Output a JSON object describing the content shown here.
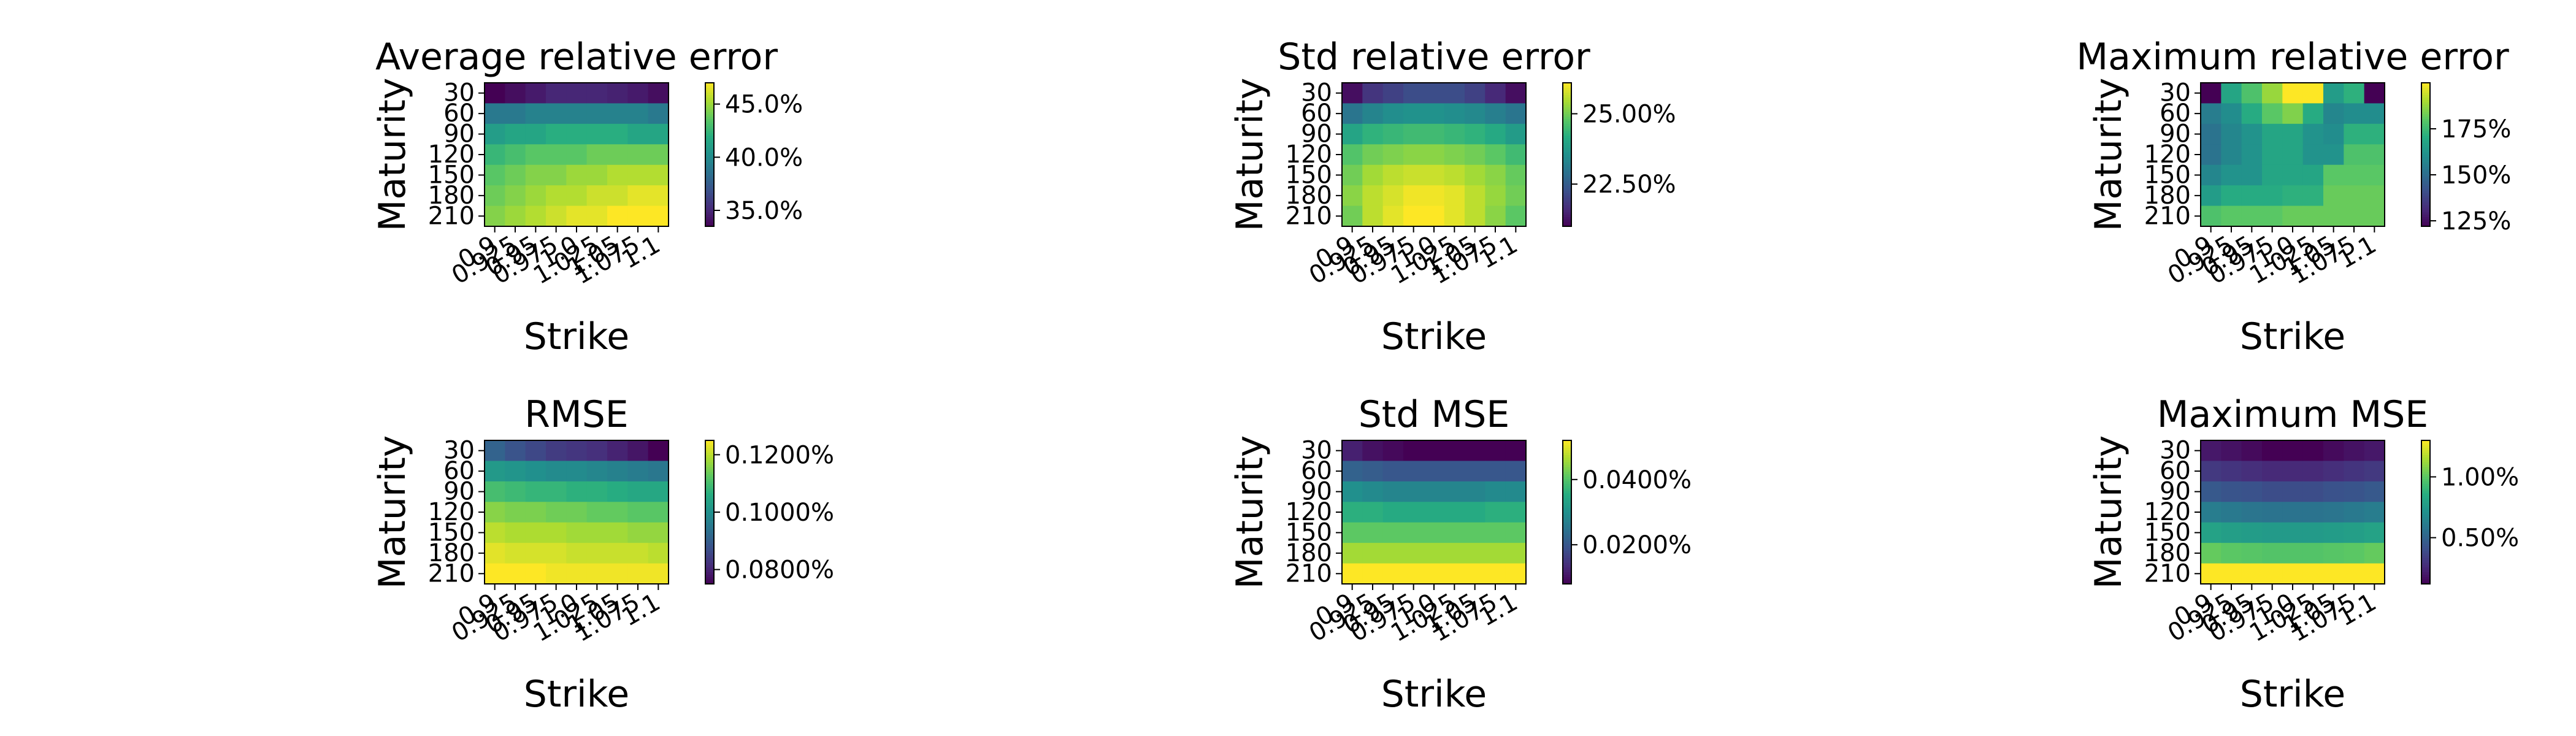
{
  "colormap": "viridis",
  "chart_data": [
    {
      "type": "heatmap",
      "title": "Average relative error",
      "xlabel": "Strike",
      "ylabel": "Maturity",
      "x_categories": [
        "0.9",
        "0.925",
        "0.95",
        "0.975",
        "1.0",
        "1.025",
        "1.05",
        "1.075",
        "1.1"
      ],
      "y_categories": [
        "30",
        "60",
        "90",
        "120",
        "150",
        "180",
        "210"
      ],
      "values": [
        [
          33.5,
          34.0,
          34.5,
          35.0,
          35.0,
          35.0,
          34.8,
          34.5,
          34.0
        ],
        [
          39.0,
          39.0,
          39.5,
          39.5,
          39.5,
          39.5,
          39.5,
          39.5,
          39.0
        ],
        [
          41.0,
          41.5,
          41.5,
          42.0,
          42.0,
          42.0,
          42.0,
          41.5,
          41.5
        ],
        [
          42.5,
          43.0,
          43.5,
          43.5,
          43.5,
          44.0,
          44.0,
          44.0,
          44.0
        ],
        [
          43.5,
          44.0,
          44.5,
          44.5,
          45.0,
          45.0,
          45.5,
          45.5,
          45.5
        ],
        [
          44.0,
          44.5,
          45.0,
          45.5,
          45.5,
          46.0,
          46.0,
          46.5,
          46.5
        ],
        [
          44.5,
          45.0,
          45.5,
          46.0,
          46.5,
          46.5,
          47.0,
          47.0,
          47.0
        ]
      ],
      "vmin": 33.5,
      "vmax": 47.0,
      "colorbar": {
        "ticks": [
          35.0,
          40.0,
          45.0
        ],
        "tick_labels": [
          "35.0%",
          "40.0%",
          "45.0%"
        ]
      }
    },
    {
      "type": "heatmap",
      "title": "Std relative error",
      "xlabel": "Strike",
      "ylabel": "Maturity",
      "x_categories": [
        "0.9",
        "0.925",
        "0.95",
        "0.975",
        "1.0",
        "1.025",
        "1.05",
        "1.075",
        "1.1"
      ],
      "y_categories": [
        "30",
        "60",
        "90",
        "120",
        "150",
        "180",
        "210"
      ],
      "values": [
        [
          21.2,
          21.8,
          22.0,
          22.2,
          22.2,
          22.2,
          22.0,
          21.6,
          21.2
        ],
        [
          23.0,
          23.3,
          23.5,
          23.6,
          23.6,
          23.5,
          23.4,
          23.2,
          23.0
        ],
        [
          24.0,
          24.3,
          24.4,
          24.5,
          24.5,
          24.4,
          24.3,
          24.1,
          23.8
        ],
        [
          24.7,
          25.0,
          25.1,
          25.2,
          25.2,
          25.1,
          25.0,
          24.8,
          24.5
        ],
        [
          25.0,
          25.4,
          25.6,
          25.7,
          25.7,
          25.6,
          25.4,
          25.2,
          24.9
        ],
        [
          25.2,
          25.6,
          25.8,
          26.0,
          26.0,
          25.9,
          25.6,
          25.3,
          25.0
        ],
        [
          25.0,
          25.6,
          25.9,
          26.1,
          26.1,
          25.9,
          25.6,
          25.2,
          24.8
        ]
      ],
      "vmin": 21.0,
      "vmax": 26.1,
      "colorbar": {
        "ticks": [
          22.5,
          25.0
        ],
        "tick_labels": [
          "22.50%",
          "25.00%"
        ]
      }
    },
    {
      "type": "heatmap",
      "title": "Maximum relative error",
      "xlabel": "Strike",
      "ylabel": "Maturity",
      "x_categories": [
        "0.9",
        "0.925",
        "0.95",
        "0.975",
        "1.0",
        "1.025",
        "1.05",
        "1.075",
        "1.1"
      ],
      "y_categories": [
        "30",
        "60",
        "90",
        "120",
        "150",
        "180",
        "210"
      ],
      "values": [
        [
          122,
          168,
          178,
          188,
          200,
          200,
          165,
          172,
          122
        ],
        [
          155,
          160,
          170,
          180,
          185,
          170,
          158,
          160,
          160
        ],
        [
          152,
          158,
          162,
          168,
          168,
          162,
          160,
          172,
          172
        ],
        [
          152,
          158,
          162,
          168,
          168,
          162,
          162,
          178,
          178
        ],
        [
          158,
          162,
          162,
          168,
          168,
          168,
          180,
          180,
          180
        ],
        [
          165,
          170,
          170,
          170,
          172,
          172,
          182,
          182,
          182
        ],
        [
          178,
          180,
          180,
          180,
          182,
          182,
          182,
          182,
          182
        ]
      ],
      "vmin": 122,
      "vmax": 200,
      "colorbar": {
        "ticks": [
          125,
          150,
          175
        ],
        "tick_labels": [
          "125%",
          "150%",
          "175%"
        ]
      }
    },
    {
      "type": "heatmap",
      "title": "RMSE",
      "xlabel": "Strike",
      "ylabel": "Maturity",
      "x_categories": [
        "0.9",
        "0.925",
        "0.95",
        "0.975",
        "1.0",
        "1.025",
        "1.05",
        "1.075",
        "1.1"
      ],
      "y_categories": [
        "30",
        "60",
        "90",
        "120",
        "150",
        "180",
        "210"
      ],
      "values": [
        [
          0.091,
          0.088,
          0.086,
          0.084,
          0.083,
          0.082,
          0.08,
          0.078,
          0.075
        ],
        [
          0.102,
          0.101,
          0.1,
          0.099,
          0.099,
          0.098,
          0.097,
          0.096,
          0.095
        ],
        [
          0.11,
          0.109,
          0.108,
          0.108,
          0.107,
          0.107,
          0.106,
          0.105,
          0.105
        ],
        [
          0.116,
          0.115,
          0.115,
          0.114,
          0.114,
          0.113,
          0.113,
          0.112,
          0.112
        ],
        [
          0.12,
          0.119,
          0.119,
          0.119,
          0.118,
          0.118,
          0.118,
          0.117,
          0.117
        ],
        [
          0.123,
          0.122,
          0.122,
          0.122,
          0.121,
          0.121,
          0.121,
          0.121,
          0.12
        ],
        [
          0.125,
          0.125,
          0.125,
          0.124,
          0.124,
          0.124,
          0.124,
          0.124,
          0.124
        ]
      ],
      "vmin": 0.075,
      "vmax": 0.125,
      "colorbar": {
        "ticks": [
          0.08,
          0.1,
          0.12
        ],
        "tick_labels": [
          "0.0800%",
          "0.1000%",
          "0.1200%"
        ]
      }
    },
    {
      "type": "heatmap",
      "title": "Std MSE",
      "xlabel": "Strike",
      "ylabel": "Maturity",
      "x_categories": [
        "0.9",
        "0.925",
        "0.95",
        "0.975",
        "1.0",
        "1.025",
        "1.05",
        "1.075",
        "1.1"
      ],
      "y_categories": [
        "30",
        "60",
        "90",
        "120",
        "150",
        "180",
        "210"
      ],
      "values": [
        [
          0.012,
          0.01,
          0.009,
          0.008,
          0.008,
          0.008,
          0.008,
          0.008,
          0.008
        ],
        [
          0.022,
          0.021,
          0.02,
          0.02,
          0.02,
          0.02,
          0.02,
          0.02,
          0.02
        ],
        [
          0.03,
          0.029,
          0.028,
          0.028,
          0.028,
          0.028,
          0.028,
          0.029,
          0.029
        ],
        [
          0.036,
          0.036,
          0.035,
          0.035,
          0.035,
          0.035,
          0.035,
          0.036,
          0.036
        ],
        [
          0.041,
          0.041,
          0.041,
          0.041,
          0.041,
          0.041,
          0.041,
          0.041,
          0.041
        ],
        [
          0.046,
          0.046,
          0.046,
          0.046,
          0.046,
          0.046,
          0.046,
          0.046,
          0.046
        ],
        [
          0.052,
          0.052,
          0.052,
          0.052,
          0.052,
          0.052,
          0.052,
          0.052,
          0.052
        ]
      ],
      "vmin": 0.008,
      "vmax": 0.052,
      "colorbar": {
        "ticks": [
          0.02,
          0.04
        ],
        "tick_labels": [
          "0.0200%",
          "0.0400%"
        ]
      }
    },
    {
      "type": "heatmap",
      "title": "Maximum MSE",
      "xlabel": "Strike",
      "ylabel": "Maturity",
      "x_categories": [
        "0.9",
        "0.925",
        "0.95",
        "0.975",
        "1.0",
        "1.025",
        "1.05",
        "1.075",
        "1.1"
      ],
      "y_categories": [
        "30",
        "60",
        "90",
        "120",
        "150",
        "180",
        "210"
      ],
      "values": [
        [
          0.2,
          0.18,
          0.15,
          0.12,
          0.12,
          0.12,
          0.15,
          0.18,
          0.2
        ],
        [
          0.32,
          0.3,
          0.28,
          0.26,
          0.26,
          0.26,
          0.28,
          0.3,
          0.32
        ],
        [
          0.45,
          0.43,
          0.42,
          0.4,
          0.4,
          0.4,
          0.42,
          0.43,
          0.45
        ],
        [
          0.62,
          0.6,
          0.58,
          0.57,
          0.57,
          0.57,
          0.58,
          0.6,
          0.62
        ],
        [
          0.8,
          0.78,
          0.77,
          0.76,
          0.76,
          0.76,
          0.77,
          0.78,
          0.8
        ],
        [
          1.02,
          1.0,
          0.99,
          0.98,
          0.98,
          0.98,
          0.99,
          1.0,
          1.02
        ],
        [
          1.3,
          1.3,
          1.3,
          1.3,
          1.3,
          1.3,
          1.3,
          1.3,
          1.3
        ]
      ],
      "vmin": 0.12,
      "vmax": 1.3,
      "colorbar": {
        "ticks": [
          0.5,
          1.0
        ],
        "tick_labels": [
          "0.50%",
          "1.00%"
        ]
      }
    }
  ]
}
